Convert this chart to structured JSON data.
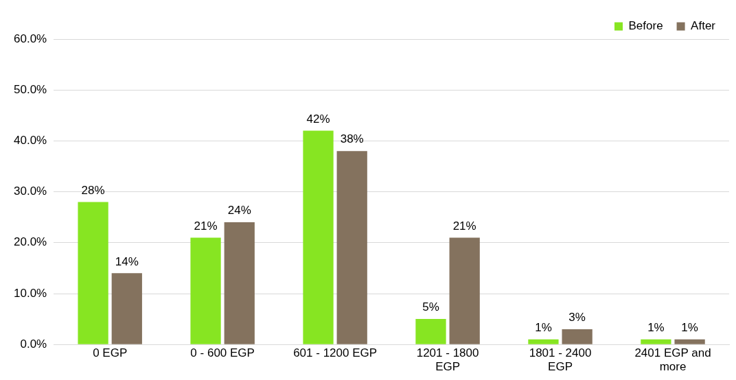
{
  "chart_data": {
    "type": "bar",
    "categories": [
      "0 EGP",
      "0 - 600 EGP",
      "601 - 1200 EGP",
      "1201 - 1800 EGP",
      "1801 - 2400 EGP",
      "2401 EGP and more"
    ],
    "series": [
      {
        "name": "Before",
        "color": "#87e522",
        "values": [
          28,
          21,
          42,
          5,
          1,
          1
        ],
        "value_labels": [
          "28%",
          "21%",
          "42%",
          "5%",
          "1%",
          "1%"
        ]
      },
      {
        "name": "After",
        "color": "#84725e",
        "values": [
          14,
          24,
          38,
          21,
          3,
          1
        ],
        "value_labels": [
          "14%",
          "24%",
          "38%",
          "21%",
          "3%",
          "1%"
        ]
      }
    ],
    "ylim": [
      0,
      60
    ],
    "yticks": [
      {
        "value": 0,
        "label": "0.0%"
      },
      {
        "value": 10,
        "label": "10.0%"
      },
      {
        "value": 20,
        "label": "20.0%"
      },
      {
        "value": 30,
        "label": "30.0%"
      },
      {
        "value": 40,
        "label": "40.0%"
      },
      {
        "value": 50,
        "label": "50.0%"
      },
      {
        "value": 60,
        "label": "60.0%"
      }
    ],
    "grid": "y",
    "legend": "top right"
  }
}
